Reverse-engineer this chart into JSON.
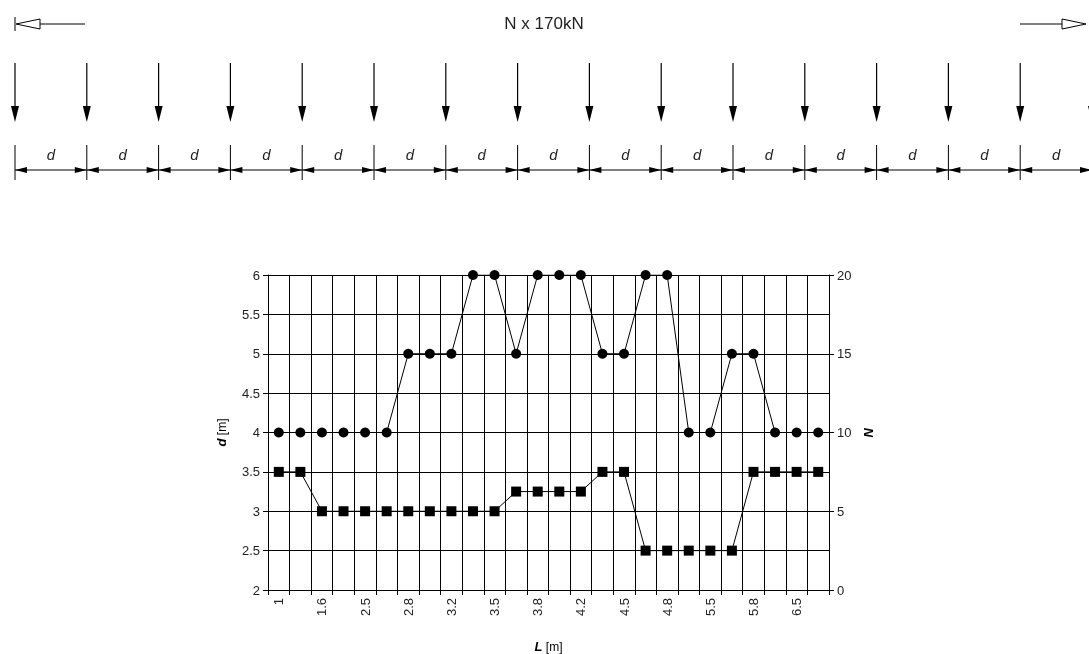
{
  "chart_data": {
    "type": "line",
    "annotations": [
      "N x 170kN",
      "d",
      "d",
      "d",
      "d",
      "d",
      "d",
      "d",
      "d",
      "d",
      "d",
      "d",
      "d",
      "d",
      "d",
      "d"
    ],
    "xlabel": "L [m]",
    "ylabel": "d [m]",
    "y2label": "N",
    "categories": [
      "1",
      null,
      "1.6",
      null,
      "2.5",
      null,
      "2.8",
      null,
      "3.2",
      null,
      "3.5",
      null,
      "3.8",
      null,
      "4.2",
      null,
      "4.5",
      null,
      "4.8",
      null,
      "5.5",
      null,
      "5.8",
      null,
      "6.5",
      null
    ],
    "series": [
      {
        "color": "#000000",
        "marker": "circle",
        "axis": "y2",
        "values": [
          10,
          10,
          10,
          10,
          10,
          10,
          15,
          15,
          15,
          20,
          20,
          15,
          20,
          20,
          20,
          15,
          15,
          20,
          20,
          10,
          10,
          15,
          15,
          10,
          10,
          10
        ]
      },
      {
        "color": "#000000",
        "marker": "square",
        "values": [
          3.5,
          3.5,
          3,
          3,
          3,
          3,
          3,
          3,
          3,
          3,
          3,
          3.25,
          3.25,
          3.25,
          3.25,
          3.5,
          3.5,
          2.5,
          2.5,
          2.5,
          2.5,
          2.5,
          3.5,
          3.5,
          3.5,
          3.5
        ]
      }
    ],
    "ylim": [
      2,
      6
    ],
    "yticks": [
      2,
      2.5,
      3,
      3.5,
      4,
      4.5,
      5,
      5.5,
      6
    ],
    "y2lim": [
      0,
      20
    ],
    "y2ticks": [
      0,
      5,
      10,
      15,
      20
    ],
    "grid": true,
    "line_style": "solid"
  }
}
